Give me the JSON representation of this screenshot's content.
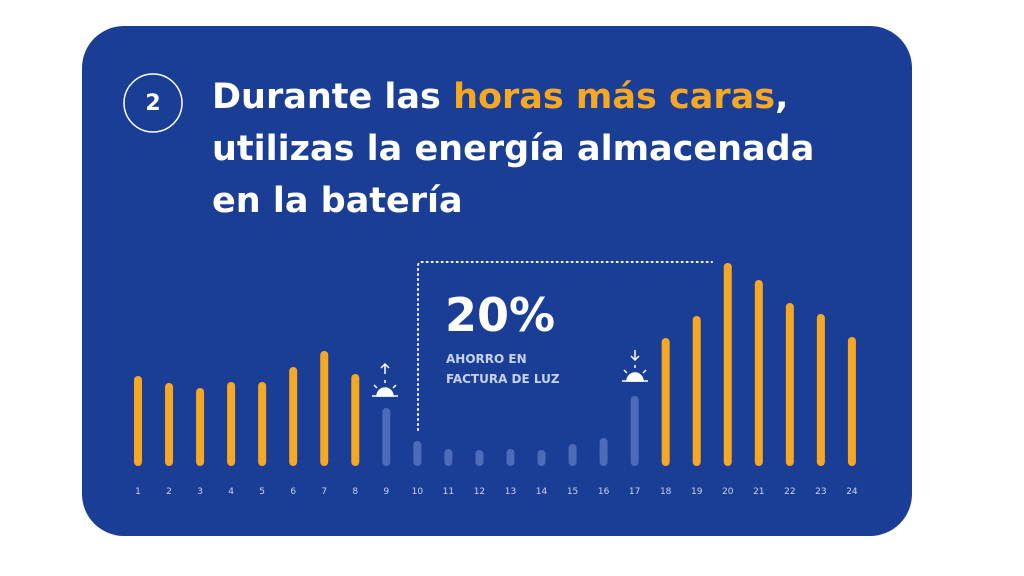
{
  "step": "2",
  "title": {
    "line1": [
      "Durante las ",
      "horas más caras",
      ","
    ],
    "line2": "utilizas la energía almacenada",
    "line3": "en la batería"
  },
  "callout": {
    "value": "20%",
    "line1": "AHORRO EN",
    "line2": "FACTURA DE LUZ"
  },
  "chart_data": {
    "type": "bar",
    "categories": [
      "1",
      "2",
      "3",
      "4",
      "5",
      "6",
      "7",
      "8",
      "9",
      "10",
      "11",
      "12",
      "13",
      "14",
      "15",
      "16",
      "17",
      "18",
      "19",
      "20",
      "21",
      "22",
      "23",
      "24"
    ],
    "values": [
      90,
      83,
      78,
      84,
      84,
      99,
      115,
      92,
      58,
      25,
      17,
      16,
      17,
      16,
      22,
      28,
      70,
      128,
      150,
      203,
      186,
      163,
      152,
      129
    ],
    "colors": [
      "#f7a823",
      "#f7a823",
      "#f7a823",
      "#f7a823",
      "#f7a823",
      "#f7a823",
      "#f7a823",
      "#f7a823",
      "#4d6bb8",
      "#4d6bb8",
      "#4d6bb8",
      "#4d6bb8",
      "#4d6bb8",
      "#4d6bb8",
      "#4d6bb8",
      "#4d6bb8",
      "#4d6bb8",
      "#f7a823",
      "#f7a823",
      "#f7a823",
      "#f7a823",
      "#f7a823",
      "#f7a823",
      "#f7a823"
    ]
  }
}
